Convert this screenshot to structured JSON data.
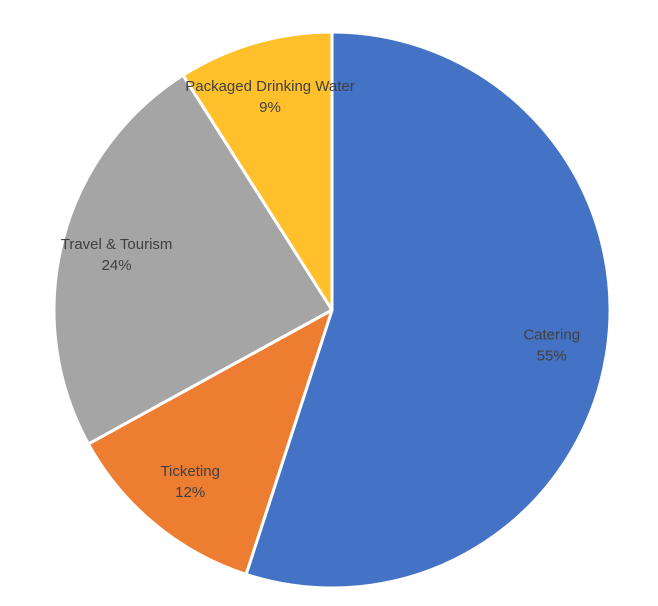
{
  "chart_data": {
    "type": "pie",
    "title": "",
    "start_angle_deg": 0,
    "direction": "clockwise",
    "slice_border_color": "#ffffff",
    "label_color": "#404040",
    "slices": [
      {
        "label": "Catering",
        "value": 55,
        "percent_label": "55%",
        "color": "#4472C4"
      },
      {
        "label": "Ticketing",
        "value": 12,
        "percent_label": "12%",
        "color": "#ED7D31"
      },
      {
        "label": "Travel & Tourism",
        "value": 24,
        "percent_label": "24%",
        "color": "#A5A5A5"
      },
      {
        "label": "Packaged Drinking Water",
        "value": 9,
        "percent_label": "9%",
        "color": "#FFC02C"
      }
    ]
  }
}
